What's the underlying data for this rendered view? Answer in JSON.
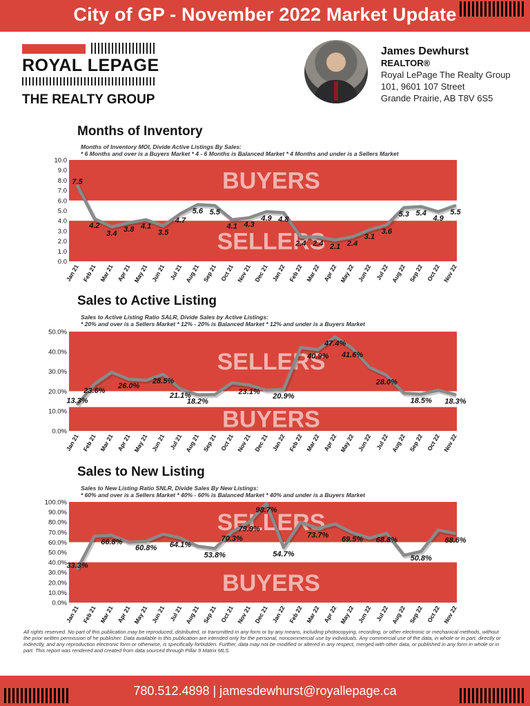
{
  "header": {
    "title": "City of GP - November 2022 Market Update"
  },
  "brand": {
    "line1": "ROYAL LEPAGE",
    "line2": "THE REALTY GROUP",
    "color": "#d9453b"
  },
  "agent": {
    "name": "James Dewhurst",
    "role": "REALTOR®",
    "company": "Royal LePage The Realty Group",
    "address1": "101, 9601 107 Street",
    "address2": "Grande Prairie, AB T8V 6S5"
  },
  "chart_data": [
    {
      "type": "line",
      "title": "Months of Inventory",
      "subtitle1": "Months of Inventory MOI, Divide Active Listings By Sales:",
      "subtitle2": "* 6 Months and over is a Buyers Market * 4 - 6 Months is Balanced Market * 4 Months and under is a Sellers Market",
      "zone_top_label": "BUYERS",
      "zone_bottom_label": "SELLERS",
      "zone_top_range": [
        6,
        10
      ],
      "zone_bottom_range": [
        0,
        4
      ],
      "ylim": [
        0,
        10
      ],
      "yticks": [
        "0.0",
        "1.0",
        "2.0",
        "3.0",
        "4.0",
        "5.0",
        "6.0",
        "7.0",
        "8.0",
        "9.0",
        "10.0"
      ],
      "categories": [
        "Jan 21",
        "Feb 21",
        "Mar 21",
        "Apr 21",
        "May 21",
        "Jun 21",
        "Jul 21",
        "Aug 21",
        "Sep 21",
        "Oct 21",
        "Nov 21",
        "Dec 21",
        "Jan 22",
        "Feb 22",
        "Mar 22",
        "Apr 22",
        "May 22",
        "Jun 22",
        "Jul 22",
        "Aug 22",
        "Sep 22",
        "Oct 22",
        "Nov 22"
      ],
      "values": [
        7.5,
        4.2,
        3.4,
        3.8,
        4.1,
        3.5,
        4.7,
        5.6,
        5.5,
        4.1,
        4.3,
        4.9,
        4.8,
        2.4,
        2.4,
        2.1,
        2.4,
        3.1,
        3.6,
        5.3,
        5.4,
        4.9,
        5.5
      ],
      "labels": [
        "7.5",
        "4.2",
        "3.4",
        "3.8",
        "4.1",
        "3.5",
        "4.7",
        "5.6",
        "5.5",
        "4.1",
        "4.3",
        "4.9",
        "4.8",
        "2.4",
        "2.4",
        "2.1",
        "2.4",
        "3.1",
        "3.6",
        "5.3",
        "5.4",
        "4.9",
        "5.5"
      ]
    },
    {
      "type": "line",
      "title": "Sales to Active Listing",
      "subtitle1": "Sales to Active Listing Ratio SALR, Divide Sales by Active Listings:",
      "subtitle2": "* 20% and over is a Sellers Market * 12% - 20% is Balanced Market  * 12% and under is a Buyers Market",
      "zone_top_label": "SELLERS",
      "zone_bottom_label": "BUYERS",
      "zone_top_range": [
        20,
        50
      ],
      "zone_bottom_range": [
        0,
        12
      ],
      "ylim": [
        0,
        50
      ],
      "yticks": [
        "0.0%",
        "10.0%",
        "20.0%",
        "30.0%",
        "40.0%",
        "50.0%"
      ],
      "categories": [
        "Jan 21",
        "Feb 21",
        "Mar 21",
        "Apr 21",
        "May 21",
        "Jun 21",
        "Jul 21",
        "Aug 21",
        "Sep 21",
        "Oct 21",
        "Nov 21",
        "Dec 21",
        "Jan 22",
        "Feb 22",
        "Mar 22",
        "Apr 22",
        "May 22",
        "Jun 22",
        "Jul 22",
        "Aug 22",
        "Sep 22",
        "Oct 22",
        "Nov 22"
      ],
      "values": [
        13.3,
        23.6,
        29.5,
        26.0,
        25.5,
        28.5,
        21.1,
        18.2,
        18.3,
        24.2,
        23.1,
        20.5,
        20.9,
        42.0,
        40.9,
        47.4,
        41.6,
        32.0,
        28.0,
        19.0,
        18.5,
        20.5,
        18.3
      ],
      "labels": [
        "13.3%",
        "23.6%",
        "",
        "26.0%",
        "",
        "28.5%",
        "21.1%",
        "18.2%",
        "",
        "",
        "23.1%",
        "",
        "20.9%",
        "",
        "40.9%",
        "47.4%",
        "41.6%",
        "",
        "28.0%",
        "",
        "18.5%",
        "",
        "18.3%"
      ]
    },
    {
      "type": "line",
      "title": "Sales to New Listing",
      "subtitle1": "Sales to New Listing Ratio SNLR, Divide Sales By New Listings:",
      "subtitle2": "* 60% and over is a Sellers Market * 40% - 60% is Balanced Market * 40% and under is a Buyers Market",
      "zone_top_label": "SELLERS",
      "zone_bottom_label": "BUYERS",
      "zone_top_range": [
        60,
        100
      ],
      "zone_bottom_range": [
        0,
        40
      ],
      "ylim": [
        0,
        100
      ],
      "yticks": [
        "0.0%",
        "10.0%",
        "20.0%",
        "30.0%",
        "40.0%",
        "50.0%",
        "60.0%",
        "70.0%",
        "80.0%",
        "90.0%",
        "100.0%"
      ],
      "categories": [
        "Jan 21",
        "Feb 21",
        "Mar 21",
        "Apr 21",
        "May 21",
        "Jun 21",
        "Jul 21",
        "Aug 21",
        "Sep 21",
        "Oct 21",
        "Nov 21",
        "Dec 21",
        "Jan 22",
        "Feb 22",
        "Mar 22",
        "Apr 22",
        "May 22",
        "Jun 22",
        "Jul 22",
        "Aug 22",
        "Sep 22",
        "Oct 22",
        "Nov 22"
      ],
      "values": [
        33.3,
        66.0,
        66.8,
        60.0,
        60.8,
        68.0,
        64.1,
        56.0,
        53.8,
        70.3,
        79.9,
        98.7,
        54.7,
        80.0,
        73.7,
        78.0,
        69.5,
        64.0,
        68.8,
        47.0,
        50.8,
        72.0,
        68.6
      ],
      "labels": [
        "33.3%",
        "",
        "66.8%",
        "",
        "60.8%",
        "",
        "64.1%",
        "",
        "53.8%",
        "70.3%",
        "79.9%",
        "98.7%",
        "54.7%",
        "",
        "73.7%",
        "",
        "69.5%",
        "",
        "68.8%",
        "",
        "50.8%",
        "",
        "68.6%"
      ]
    }
  ],
  "disclaimer": "All rights reserved. No part of this publication may be reproduced, distributed, or transmitted in any form or by any means, including photocopying, recording, or other electronic or mechanical methods, without the prior written permission of he publisher. Data available in this publication are intended only for the personal, noncommercial use by individuals. Any commercial use of the data, in whole or in part, directly or indirectly, and any reproduction electronic form or otherwise, is specifically forbidden. Further, data may not be modified or altered in any respect, merged with other data, or published in any form in whole or in part. This report was rendered and created from data sourced through Pillar 9 Matrix MLS.",
  "footer": {
    "contact": "780.512.4898  |  jamesdewhurst@royallepage.ca"
  }
}
